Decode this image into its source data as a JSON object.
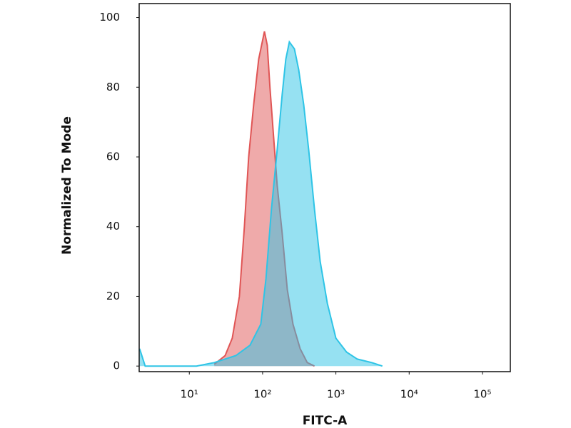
{
  "chart_data": {
    "type": "area",
    "x_label": "FITC-A",
    "y_label": "Normalized To Mode",
    "xscale": "log",
    "grid": false,
    "xlim": [
      2.07,
      240000
    ],
    "ylim": [
      -1.6,
      104
    ],
    "xticks": [
      {
        "value": 10,
        "label": "10¹"
      },
      {
        "value": 100,
        "label": "10²"
      },
      {
        "value": 1000,
        "label": "10³"
      },
      {
        "value": 10000,
        "label": "10⁴"
      },
      {
        "value": 100000,
        "label": "10⁵"
      }
    ],
    "yticks": [
      0,
      20,
      40,
      60,
      80,
      100
    ],
    "series": [
      {
        "color": "#e05555",
        "x": [
          21.9,
          30.8,
          38.5,
          48.2,
          56.4,
          64.5,
          75.5,
          88.3,
          106,
          116,
          126,
          142,
          158,
          185,
          217,
          260,
          325,
          407,
          510
        ],
        "values": [
          0.5,
          3,
          8,
          20,
          40,
          60,
          75,
          88,
          96,
          92,
          80,
          65,
          52,
          38,
          22,
          12,
          5,
          1,
          0
        ]
      },
      {
        "color": "#2ec4e6",
        "x": [
          2.1,
          2.5,
          12.5,
          21.9,
          43.1,
          67.4,
          94.6,
          111,
          132,
          158,
          185,
          207,
          232,
          272,
          311,
          364,
          426,
          510,
          610,
          764,
          1000,
          1400,
          1960,
          3080,
          4310
        ],
        "values": [
          5,
          0,
          0,
          1,
          3,
          6,
          12,
          25,
          45,
          62,
          78,
          88,
          93,
          91,
          85,
          75,
          62,
          45,
          30,
          18,
          8,
          4,
          2,
          1,
          0
        ]
      }
    ]
  }
}
